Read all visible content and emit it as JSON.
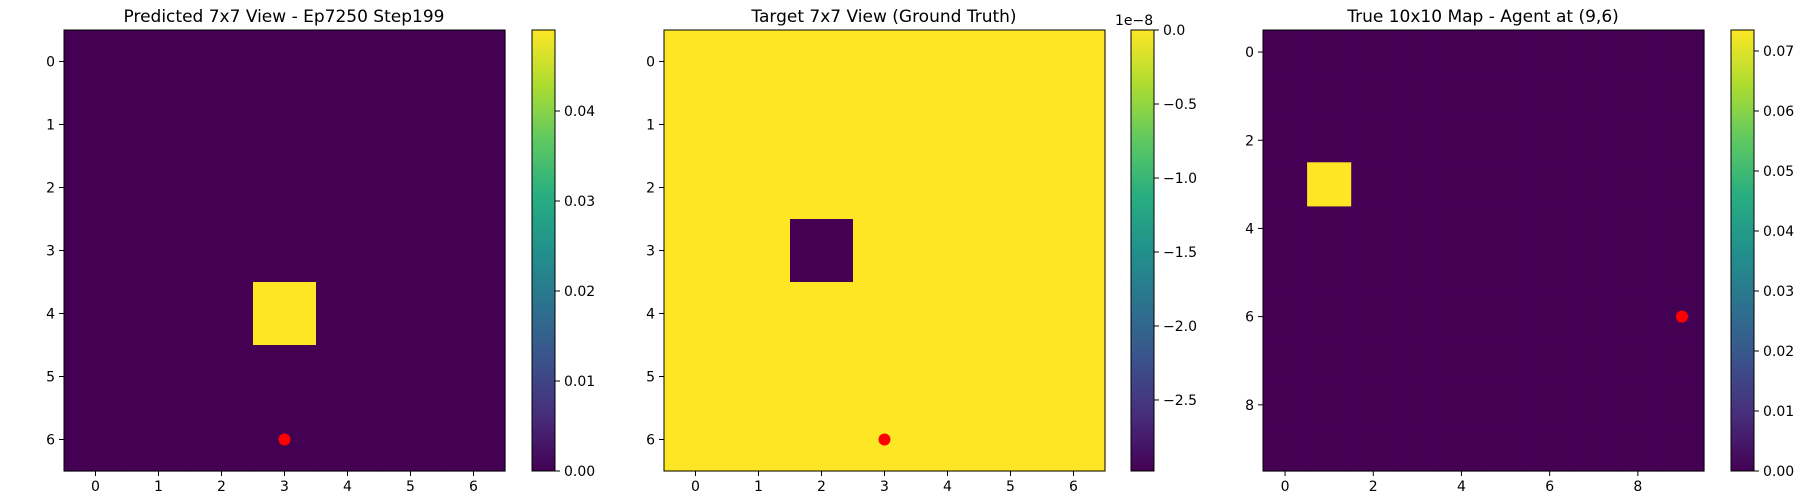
{
  "chart_data": [
    {
      "type": "heatmap",
      "title": "Predicted 7x7 View - Ep7250 Step199",
      "rows": 7,
      "cols": 7,
      "x_ticks": [
        "0",
        "1",
        "2",
        "3",
        "4",
        "5",
        "6"
      ],
      "y_ticks": [
        "0",
        "1",
        "2",
        "3",
        "4",
        "5",
        "6"
      ],
      "values": [
        [
          0,
          0,
          0,
          0,
          0,
          0,
          0
        ],
        [
          0,
          0,
          0,
          0,
          0,
          0,
          0
        ],
        [
          0,
          0,
          0,
          0,
          0,
          0,
          0
        ],
        [
          0,
          0,
          0,
          0,
          0,
          0,
          0
        ],
        [
          0,
          0,
          0,
          0.049,
          0,
          0,
          0
        ],
        [
          0,
          0,
          0,
          0,
          0,
          0,
          0
        ],
        [
          0,
          0,
          0,
          0,
          0,
          0,
          0
        ]
      ],
      "colorbar": {
        "min": 0,
        "max": 0.049,
        "ticks": [
          0.0,
          0.01,
          0.02,
          0.03,
          0.04
        ],
        "tick_labels": [
          "0.00",
          "0.01",
          "0.02",
          "0.03",
          "0.04"
        ],
        "offset_label": ""
      },
      "agent": {
        "x": 3,
        "y": 6,
        "color": "#ff0000"
      }
    },
    {
      "type": "heatmap",
      "title": "Target 7x7 View (Ground Truth)",
      "rows": 7,
      "cols": 7,
      "x_ticks": [
        "0",
        "1",
        "2",
        "3",
        "4",
        "5",
        "6"
      ],
      "y_ticks": [
        "0",
        "1",
        "2",
        "3",
        "4",
        "5",
        "6"
      ],
      "values": [
        [
          0,
          0,
          0,
          0,
          0,
          0,
          0
        ],
        [
          0,
          0,
          0,
          0,
          0,
          0,
          0
        ],
        [
          0,
          0,
          0,
          0,
          0,
          0,
          0
        ],
        [
          0,
          0,
          -2.98e-08,
          0,
          0,
          0,
          0
        ],
        [
          0,
          0,
          0,
          0,
          0,
          0,
          0
        ],
        [
          0,
          0,
          0,
          0,
          0,
          0,
          0
        ],
        [
          0,
          0,
          0,
          0,
          0,
          0,
          0
        ]
      ],
      "colorbar": {
        "min": -2.98e-08,
        "max": 0,
        "ticks": [
          0.0,
          -5e-09,
          -1e-08,
          -1.5e-08,
          -2e-08,
          -2.5e-08
        ],
        "tick_labels": [
          "0.0",
          "−0.5",
          "−1.0",
          "−1.5",
          "−2.0",
          "−2.5"
        ],
        "offset_label": "1e−8"
      },
      "agent": {
        "x": 3,
        "y": 6,
        "color": "#ff0000"
      }
    },
    {
      "type": "heatmap",
      "title": "True 10x10 Map - Agent at (9,6)",
      "rows": 10,
      "cols": 10,
      "x_ticks": [
        "0",
        "2",
        "4",
        "6",
        "8"
      ],
      "y_ticks": [
        "0",
        "2",
        "4",
        "6",
        "8"
      ],
      "values": [
        [
          0,
          0,
          0,
          0,
          0,
          0,
          0,
          0,
          0,
          0
        ],
        [
          0,
          0,
          0,
          0,
          0,
          0,
          0,
          0,
          0,
          0
        ],
        [
          0,
          0,
          0,
          0,
          0,
          0,
          0,
          0,
          0,
          0
        ],
        [
          0,
          0.0735,
          0,
          0,
          0,
          0,
          0,
          0,
          0,
          0
        ],
        [
          0,
          0,
          0,
          0,
          0,
          0,
          0,
          0,
          0,
          0
        ],
        [
          0,
          0,
          0,
          0,
          0,
          0,
          0,
          0,
          0,
          0
        ],
        [
          0,
          0,
          0,
          0,
          0,
          0,
          0,
          0,
          0,
          0
        ],
        [
          0,
          0,
          0,
          0,
          0,
          0,
          0,
          0,
          0,
          0
        ],
        [
          0,
          0,
          0,
          0,
          0,
          0,
          0,
          0,
          0,
          0
        ],
        [
          0,
          0,
          0,
          0,
          0,
          0,
          0,
          0,
          0,
          0
        ]
      ],
      "colorbar": {
        "min": 0,
        "max": 0.0735,
        "ticks": [
          0.0,
          0.01,
          0.02,
          0.03,
          0.04,
          0.05,
          0.06,
          0.07
        ],
        "tick_labels": [
          "0.00",
          "0.01",
          "0.02",
          "0.03",
          "0.04",
          "0.05",
          "0.06",
          "0.07"
        ],
        "offset_label": ""
      },
      "agent": {
        "x": 9,
        "y": 6,
        "color": "#ff0000"
      }
    }
  ],
  "colormap": "viridis",
  "colors": {
    "low": "#440154",
    "high": "#fde725",
    "marker": "#ff0000"
  }
}
